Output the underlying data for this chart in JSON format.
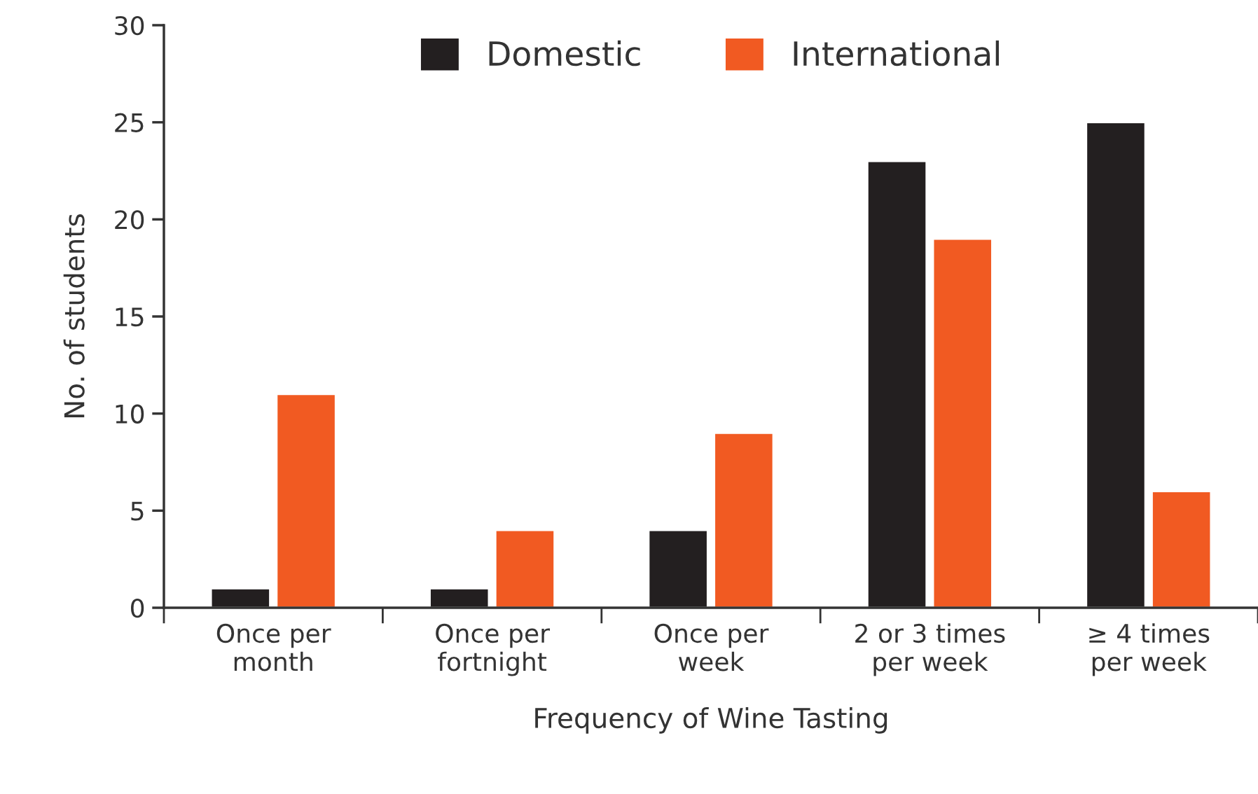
{
  "chart_data": {
    "type": "bar",
    "xlabel": "Frequency of Wine Tasting",
    "ylabel": "No. of students",
    "categories": [
      "Once per\nmonth",
      "Once per\nfortnight",
      "Once per\nweek",
      "2 or 3 times\nper week",
      "≥ 4 times\nper week"
    ],
    "series": [
      {
        "name": "Domestic",
        "color": "#231f20",
        "values": [
          1,
          1,
          4,
          23,
          25
        ]
      },
      {
        "name": "International",
        "color": "#f15a22",
        "values": [
          11,
          4,
          9,
          19,
          6
        ]
      }
    ],
    "ylim": [
      0,
      30
    ],
    "yticks": [
      0,
      5,
      10,
      15,
      20,
      25,
      30
    ],
    "legend": "top",
    "grid": false
  }
}
